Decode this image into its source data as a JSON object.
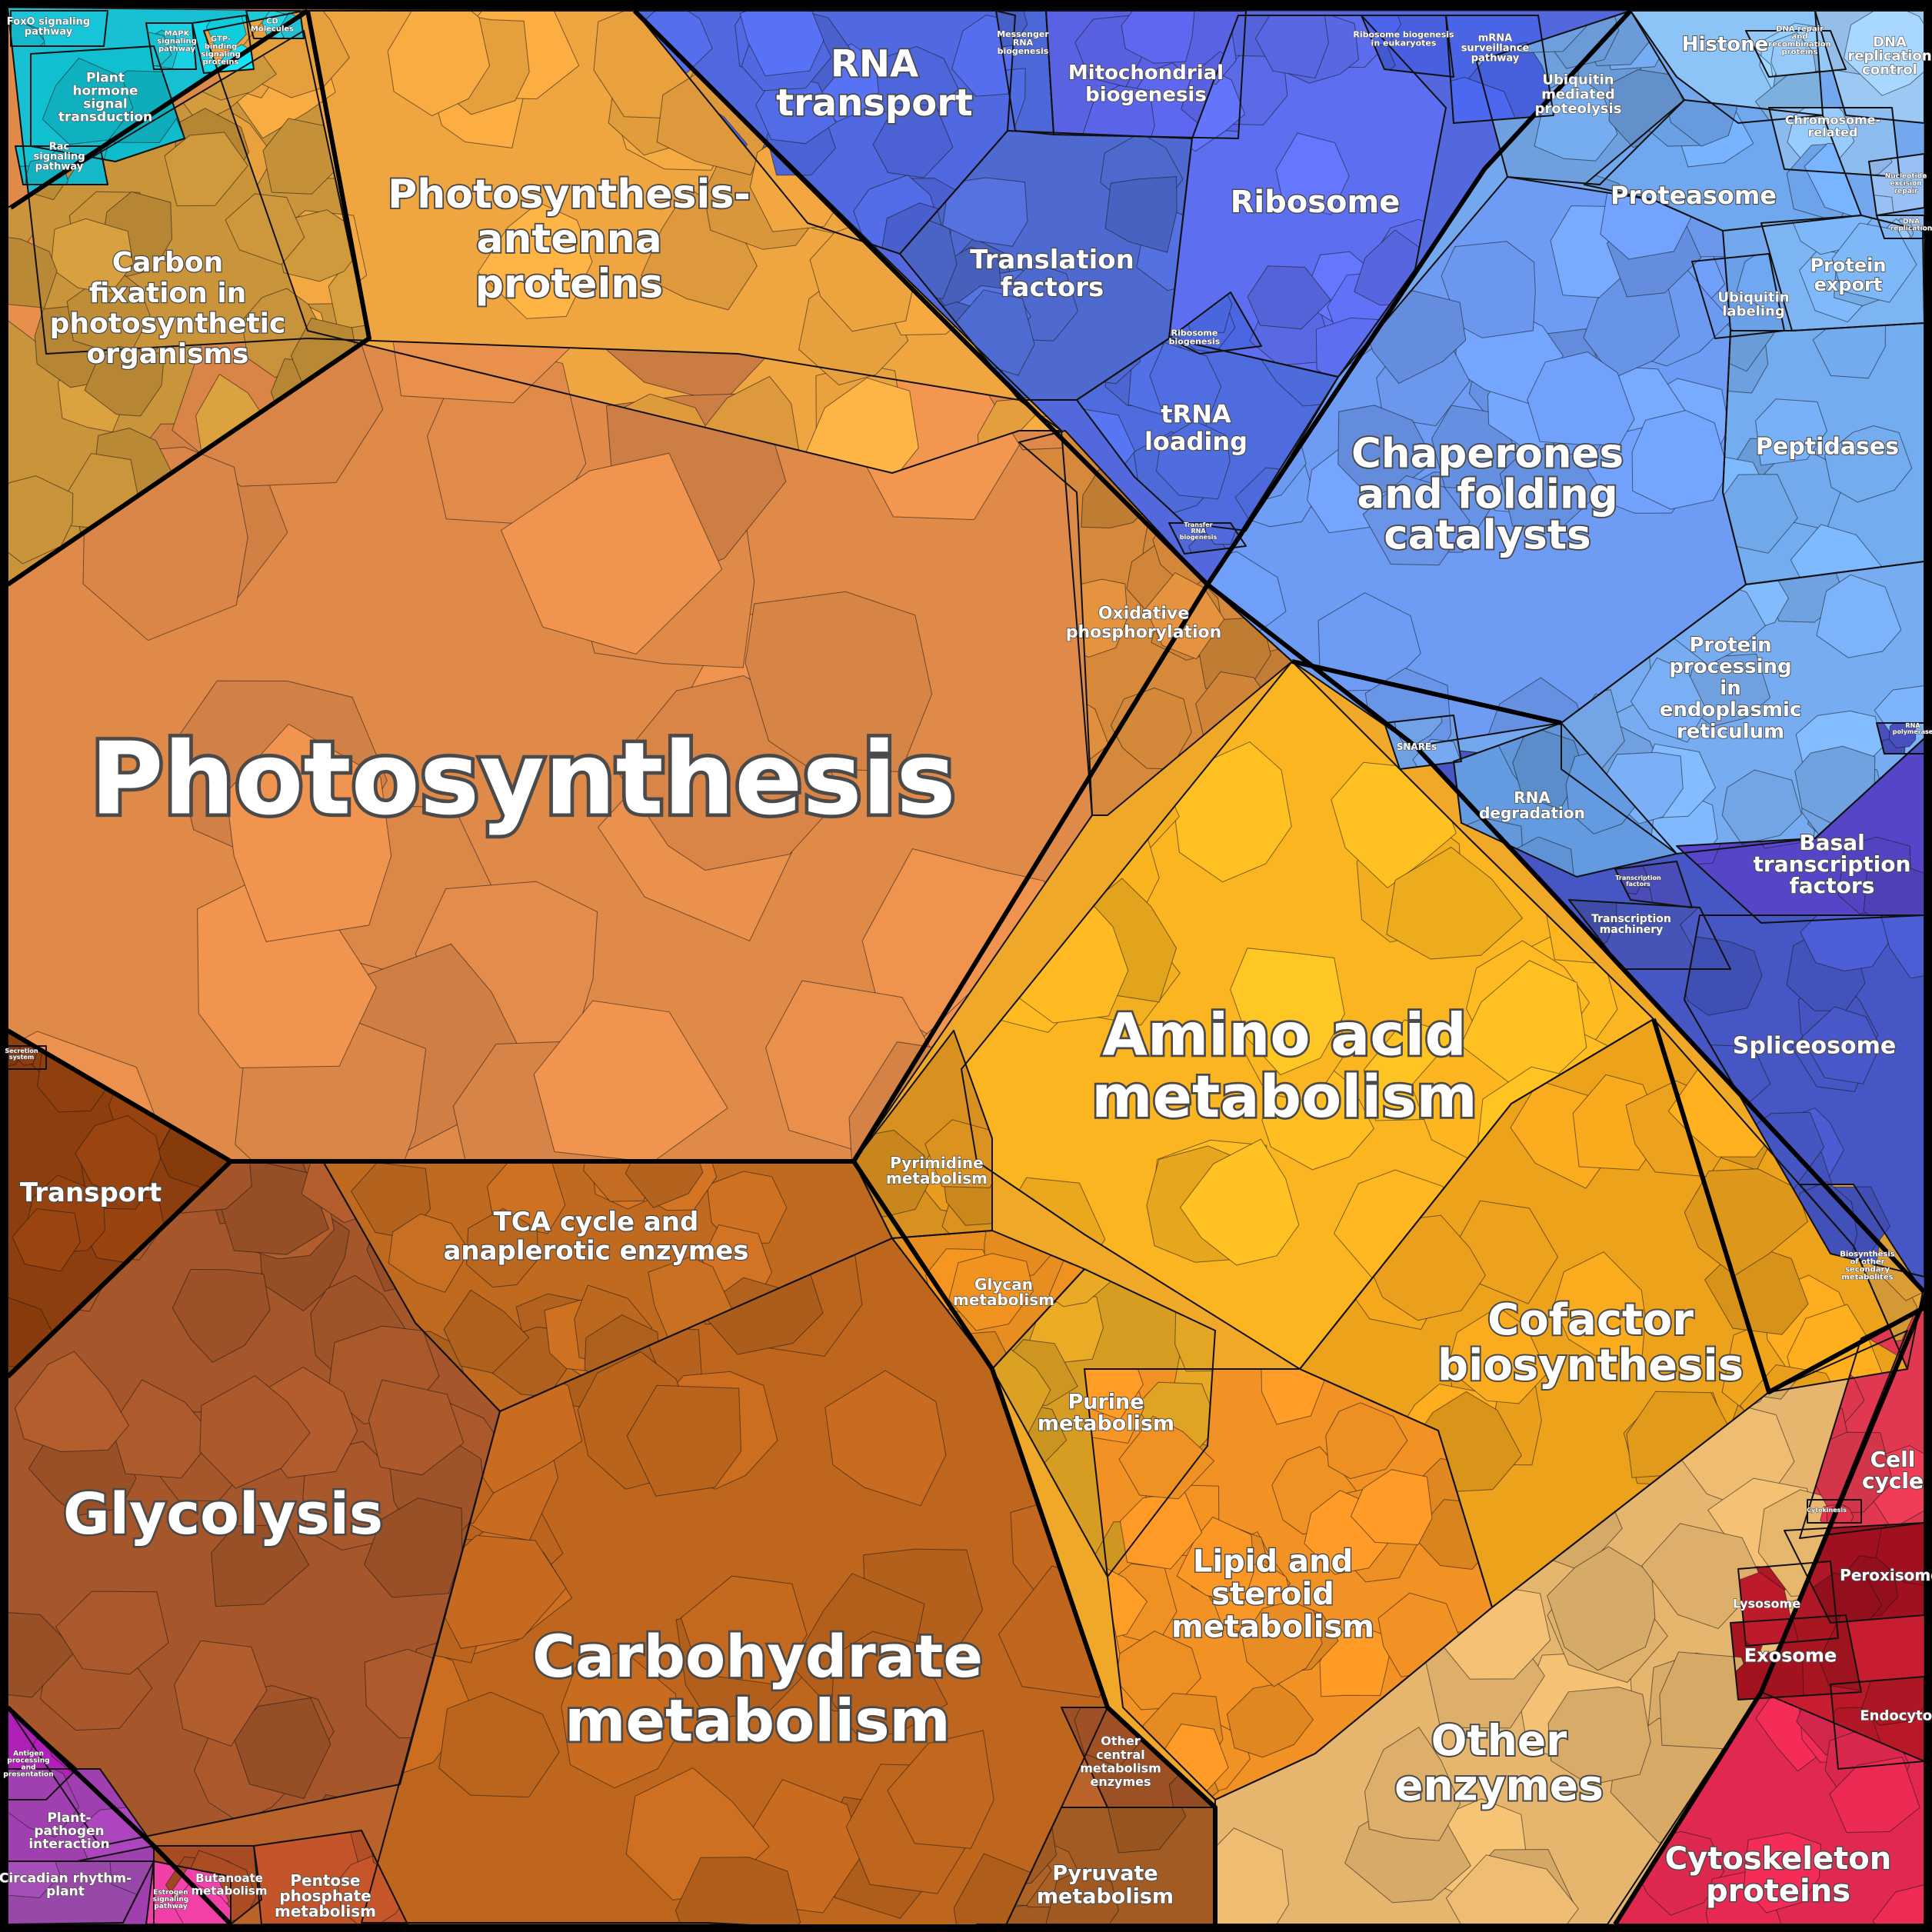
{
  "groups": [
    {
      "label": "Photosynthesis",
      "color": "#e08a4a"
    },
    {
      "label": "Photosynthesis-\nantenna\nproteins",
      "color": "#f0a640"
    },
    {
      "label": "Carbon\nfixation in\nphotosynthetic\norganisms",
      "color": "#c9943a"
    },
    {
      "label": "Oxidative\nphosphorylation",
      "color": "#d6893a"
    },
    {
      "label": "Transport",
      "color": "#8c3e0e"
    },
    {
      "label": "TCA cycle and\nanaplerotic enzymes",
      "color": "#c06a20"
    },
    {
      "label": "Glycolysis",
      "color": "#a5562a"
    },
    {
      "label": "Carbohydrate\nmetabolism",
      "color": "#bf661e"
    },
    {
      "label": "Butanoate\nmetabolism",
      "color": "#a84a22"
    },
    {
      "label": "Pentose\nphosphate\nmetabolism",
      "color": "#c4552a"
    },
    {
      "label": "Pyruvate\nmetabolism",
      "color": "#a25b22"
    },
    {
      "label": "Other\ncentral\nmetabolism\nenzymes",
      "color": "#9c5024"
    },
    {
      "label": "Amino acid\nmetabolism",
      "color": "#fbb520"
    },
    {
      "label": "Pyrimidine\nmetabolism",
      "color": "#d8901e"
    },
    {
      "label": "Glycan\nmetabolism",
      "color": "#e88d1f"
    },
    {
      "label": "Purine\nmetabolism",
      "color": "#d79c22"
    },
    {
      "label": "Lipid and\nsteroid\nmetabolism",
      "color": "#f29224"
    },
    {
      "label": "Cofactor\nbiosynthesis",
      "color": "#eda21c"
    },
    {
      "label": "Biosynthesis\nof other\nsecondary\nmetabolites",
      "color": "#e8a63a"
    },
    {
      "label": "Other\nenzymes",
      "color": "#e6b66e"
    },
    {
      "label": "RNA\ntransport",
      "color": "#5068e0"
    },
    {
      "label": "Messenger\nRNA\nbiogenesis",
      "color": "#4c68d8"
    },
    {
      "label": "Mitochondrial\nbiogenesis",
      "color": "#5a62e4"
    },
    {
      "label": "Translation\nfactors",
      "color": "#4e6ad0"
    },
    {
      "label": "Ribosome",
      "color": "#5e6ef0"
    },
    {
      "label": "Ribosome\nbiogenesis",
      "color": "#4a66e0"
    },
    {
      "label": "tRNA\nloading",
      "color": "#4f6cde"
    },
    {
      "label": "Ribosome biogenesis\nin eukaryotes",
      "color": "#4860e0"
    },
    {
      "label": "mRNA\nsurveillance\npathway",
      "color": "#4a64e6"
    },
    {
      "label": "Transfer\nRNA\nbiogenesis",
      "color": "#5068d8"
    },
    {
      "label": "Histone",
      "color": "#8cc4f8"
    },
    {
      "label": "DNA repair\nand\nrecombination\nproteins",
      "color": "#94c8f8"
    },
    {
      "label": "DNA\nreplication\ncontrol",
      "color": "#9cc8f4"
    },
    {
      "label": "Chromosome-\nrelated",
      "color": "#8cbcf0"
    },
    {
      "label": "Ubiquitin\nmediated\nproteolysis",
      "color": "#6ea0e0"
    },
    {
      "label": "Proteasome",
      "color": "#70a8f0"
    },
    {
      "label": "Nucleotide\nexcision\nrepair",
      "color": "#98c0f4"
    },
    {
      "label": "DNA\nreplication",
      "color": "#90bcf0"
    },
    {
      "label": "Ubiquitin\nlabeling",
      "color": "#6aa0e8"
    },
    {
      "label": "Protein\nexport",
      "color": "#7cb4f4"
    },
    {
      "label": "Peptidases",
      "color": "#74acf0"
    },
    {
      "label": "Chaperones\nand folding\ncatalysts",
      "color": "#6e9cf4"
    },
    {
      "label": "Protein\nprocessing\nin\nendoplasmic\nreticulum",
      "color": "#78acf0"
    },
    {
      "label": "SNAREs",
      "color": "#70a0e4"
    },
    {
      "label": "RNA\ndegradation",
      "color": "#649ae0"
    },
    {
      "label": "Basal\ntranscription\nfactors",
      "color": "#5546c8"
    },
    {
      "label": "Transcription\nfactors",
      "color": "#4a4cb8"
    },
    {
      "label": "Transcription\nmachinery",
      "color": "#4654b8"
    },
    {
      "label": "Spliceosome",
      "color": "#4656c4"
    },
    {
      "label": "RNA\npolymerase",
      "color": "#4850c0"
    },
    {
      "label": "FoxO signaling\npathway",
      "color": "#18c4d8"
    },
    {
      "label": "Plant\nhormone\nsignal\ntransduction",
      "color": "#10c0d0"
    },
    {
      "label": "MAPK\nsignaling\npathway",
      "color": "#18d0e0"
    },
    {
      "label": "GTP-\nbinding\nsignaling\nproteins",
      "color": "#10d8e8"
    },
    {
      "label": "CD\nMolecules",
      "color": "#20c8d8"
    },
    {
      "label": "Rac\nsignaling\npathway",
      "color": "#14b8c8"
    },
    {
      "label": "Secretion\nsystem",
      "color": "#8a3a10"
    },
    {
      "label": "Antigen\nprocessing\nand\npresentation",
      "color": "#b020b8"
    },
    {
      "label": "Plant-\npathogen\ninteraction",
      "color": "#a040b0"
    },
    {
      "label": "Circadian rhythm-\nplant",
      "color": "#9848a8"
    },
    {
      "label": "Estrogen\nsignaling\npathway",
      "color": "#f040a8"
    },
    {
      "label": "Cell\ncycle",
      "color": "#e03850"
    },
    {
      "label": "Cytokinesis",
      "color": "#d83048"
    },
    {
      "label": "Peroxisome",
      "color": "#a01020"
    },
    {
      "label": "Lysosome",
      "color": "#b01828"
    },
    {
      "label": "Exosome",
      "color": "#a81420"
    },
    {
      "label": "Endocytosis",
      "color": "#b81828"
    },
    {
      "label": "Cytoskeleton\nproteins",
      "color": "#e02850"
    }
  ]
}
